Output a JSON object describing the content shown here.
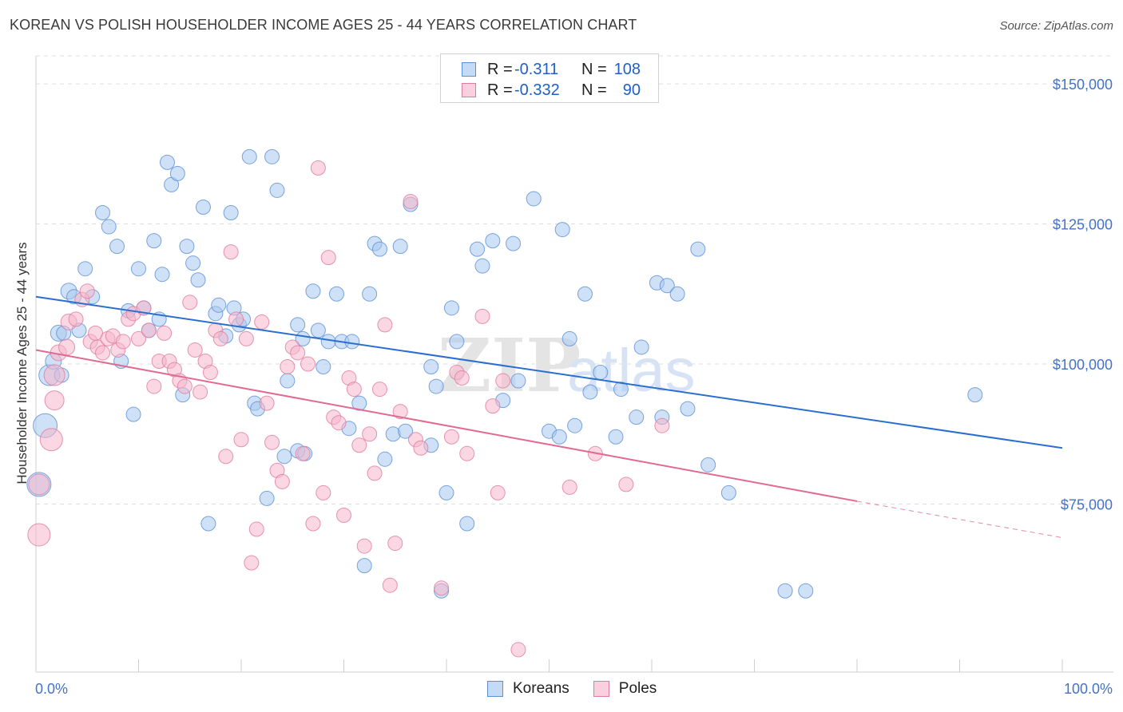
{
  "header": {
    "title": "KOREAN VS POLISH HOUSEHOLDER INCOME AGES 25 - 44 YEARS CORRELATION CHART",
    "source": "Source: ZipAtlas.com"
  },
  "legend": {
    "rows": [
      {
        "r_label": "R =",
        "r_value": "-0.311",
        "n_label": "N =",
        "n_value": "108",
        "color": "#a8c8f0"
      },
      {
        "r_label": "R =",
        "r_value": "-0.332",
        "n_label": "N =",
        "n_value": "90",
        "color": "#f5b6cb"
      }
    ]
  },
  "bottom_legend": [
    {
      "label": "Koreans",
      "color": "#a8c8f0"
    },
    {
      "label": "Poles",
      "color": "#f5b6cb"
    }
  ],
  "watermark": {
    "zip": "ZIP",
    "atlas": "atlas"
  },
  "chart_data": {
    "type": "scatter",
    "title": "KOREAN VS POLISH HOUSEHOLDER INCOME AGES 25 - 44 YEARS CORRELATION CHART",
    "xlabel": "",
    "ylabel": "Householder Income Ages 25 - 44 years",
    "xlim": [
      0,
      100
    ],
    "ylim": [
      45000,
      155000
    ],
    "x_tick_labels": [
      "0.0%",
      "100.0%"
    ],
    "y_ticks": [
      75000,
      100000,
      125000,
      150000
    ],
    "y_tick_labels": [
      "$75,000",
      "$100,000",
      "$125,000",
      "$150,000"
    ],
    "grid": true,
    "legend_position": "top-center",
    "series": [
      {
        "name": "Koreans",
        "color": "#a8c8f0",
        "stroke": "#5b8fd6",
        "trend": {
          "x": [
            0,
            100
          ],
          "y": [
            112000,
            85000
          ],
          "color": "#2a6fd0"
        },
        "points": [
          [
            0.3,
            78500,
            14
          ],
          [
            0.9,
            89000,
            14
          ],
          [
            1.3,
            98000,
            12
          ],
          [
            1.7,
            100500,
            9
          ],
          [
            2.2,
            105500,
            9
          ],
          [
            2.5,
            98000,
            8
          ],
          [
            2.7,
            105500,
            8
          ],
          [
            3.2,
            113000,
            9
          ],
          [
            3.7,
            112000,
            8
          ],
          [
            4.2,
            106000,
            8
          ],
          [
            4.8,
            117000,
            8
          ],
          [
            5.5,
            112000,
            8
          ],
          [
            6.5,
            127000,
            8
          ],
          [
            7.1,
            124500,
            8
          ],
          [
            7.9,
            121000,
            8
          ],
          [
            8.3,
            100500,
            8
          ],
          [
            9.0,
            109500,
            8
          ],
          [
            9.5,
            91000,
            8
          ],
          [
            10.0,
            117000,
            8
          ],
          [
            10.5,
            110000,
            8
          ],
          [
            11.0,
            106000,
            8
          ],
          [
            11.5,
            122000,
            8
          ],
          [
            12.0,
            108000,
            8
          ],
          [
            12.3,
            116000,
            8
          ],
          [
            12.8,
            136000,
            8
          ],
          [
            13.2,
            132000,
            8
          ],
          [
            13.8,
            134000,
            8
          ],
          [
            14.3,
            94500,
            8
          ],
          [
            14.7,
            121000,
            8
          ],
          [
            15.3,
            118000,
            8
          ],
          [
            15.8,
            115000,
            8
          ],
          [
            16.3,
            128000,
            8
          ],
          [
            16.8,
            71500,
            8
          ],
          [
            17.5,
            109000,
            8
          ],
          [
            17.8,
            110500,
            8
          ],
          [
            18.5,
            105000,
            8
          ],
          [
            19.0,
            127000,
            8
          ],
          [
            19.3,
            110000,
            8
          ],
          [
            19.8,
            107000,
            8
          ],
          [
            20.2,
            108000,
            8
          ],
          [
            20.8,
            137000,
            8
          ],
          [
            21.3,
            93000,
            8
          ],
          [
            21.6,
            92000,
            8
          ],
          [
            22.5,
            76000,
            8
          ],
          [
            23.0,
            137000,
            8
          ],
          [
            23.5,
            131000,
            8
          ],
          [
            24.2,
            83500,
            8
          ],
          [
            24.5,
            97000,
            8
          ],
          [
            25.5,
            107000,
            8
          ],
          [
            26.0,
            104500,
            8
          ],
          [
            25.5,
            84500,
            8
          ],
          [
            26.2,
            84000,
            8
          ],
          [
            27.0,
            113000,
            8
          ],
          [
            27.5,
            106000,
            8
          ],
          [
            28.0,
            99500,
            8
          ],
          [
            28.5,
            104000,
            8
          ],
          [
            29.3,
            112500,
            8
          ],
          [
            29.8,
            104000,
            8
          ],
          [
            30.5,
            88500,
            8
          ],
          [
            30.8,
            104000,
            8
          ],
          [
            31.5,
            93000,
            8
          ],
          [
            32.0,
            64000,
            8
          ],
          [
            32.5,
            112500,
            8
          ],
          [
            33.0,
            121500,
            8
          ],
          [
            33.5,
            120500,
            8
          ],
          [
            34.0,
            83000,
            8
          ],
          [
            34.8,
            87500,
            8
          ],
          [
            35.5,
            121000,
            8
          ],
          [
            36.0,
            88000,
            8
          ],
          [
            36.5,
            128500,
            8
          ],
          [
            38.5,
            99500,
            8
          ],
          [
            39.0,
            96000,
            8
          ],
          [
            38.5,
            85500,
            8
          ],
          [
            39.5,
            59500,
            8
          ],
          [
            40.0,
            77000,
            8
          ],
          [
            40.5,
            110000,
            8
          ],
          [
            41.0,
            104000,
            8
          ],
          [
            42.0,
            71500,
            8
          ],
          [
            43.0,
            120500,
            8
          ],
          [
            43.5,
            117500,
            8
          ],
          [
            44.5,
            122000,
            8
          ],
          [
            45.5,
            93500,
            8
          ],
          [
            46.5,
            121500,
            8
          ],
          [
            47.0,
            97000,
            8
          ],
          [
            48.5,
            129500,
            8
          ],
          [
            50.0,
            88000,
            8
          ],
          [
            51.0,
            87000,
            8
          ],
          [
            51.3,
            124000,
            8
          ],
          [
            52.0,
            104500,
            8
          ],
          [
            52.5,
            89000,
            8
          ],
          [
            53.5,
            112500,
            8
          ],
          [
            54.0,
            95000,
            8
          ],
          [
            55.0,
            98500,
            8
          ],
          [
            56.5,
            87000,
            8
          ],
          [
            57.0,
            95500,
            8
          ],
          [
            58.5,
            90500,
            8
          ],
          [
            59.0,
            103000,
            8
          ],
          [
            60.5,
            114500,
            8
          ],
          [
            61.5,
            114000,
            8
          ],
          [
            62.5,
            112500,
            8
          ],
          [
            63.5,
            92000,
            8
          ],
          [
            65.5,
            82000,
            8
          ],
          [
            67.5,
            77000,
            8
          ],
          [
            73.0,
            59500,
            8
          ],
          [
            75.0,
            59500,
            8
          ],
          [
            91.5,
            94500,
            8
          ],
          [
            61.0,
            90500,
            8
          ],
          [
            64.5,
            120500,
            8
          ]
        ]
      },
      {
        "name": "Poles",
        "color": "#f5b6cb",
        "stroke": "#e07aa0",
        "trend": {
          "x": [
            0,
            80
          ],
          "y": [
            102500,
            75500
          ],
          "color": "#e06a94"
        },
        "trend_dashed": {
          "x": [
            80,
            100
          ],
          "y": [
            75500,
            69000
          ]
        },
        "points": [
          [
            0.3,
            69500,
            13
          ],
          [
            0.3,
            78500,
            12
          ],
          [
            1.5,
            86500,
            13
          ],
          [
            1.8,
            98000,
            12
          ],
          [
            1.8,
            93500,
            11
          ],
          [
            2.2,
            102000,
            9
          ],
          [
            3.0,
            103000,
            9
          ],
          [
            3.2,
            107500,
            9
          ],
          [
            3.9,
            108000,
            8
          ],
          [
            4.5,
            111500,
            8
          ],
          [
            5.0,
            113000,
            8
          ],
          [
            5.3,
            104000,
            8
          ],
          [
            5.8,
            105500,
            8
          ],
          [
            6.0,
            103000,
            8
          ],
          [
            6.5,
            102000,
            8
          ],
          [
            7.0,
            104500,
            8
          ],
          [
            7.5,
            105000,
            8
          ],
          [
            8.0,
            102500,
            8
          ],
          [
            8.5,
            104000,
            8
          ],
          [
            9.0,
            108000,
            8
          ],
          [
            9.5,
            109000,
            8
          ],
          [
            10.0,
            104500,
            8
          ],
          [
            10.5,
            110000,
            8
          ],
          [
            11.0,
            106000,
            8
          ],
          [
            11.5,
            96000,
            8
          ],
          [
            12.0,
            100500,
            8
          ],
          [
            12.5,
            105500,
            8
          ],
          [
            13.0,
            100500,
            8
          ],
          [
            13.5,
            99000,
            8
          ],
          [
            14.0,
            97000,
            8
          ],
          [
            14.5,
            96000,
            8
          ],
          [
            15.0,
            111000,
            8
          ],
          [
            15.5,
            102500,
            8
          ],
          [
            16.0,
            95000,
            8
          ],
          [
            16.5,
            100500,
            8
          ],
          [
            17.0,
            98500,
            8
          ],
          [
            17.5,
            106000,
            8
          ],
          [
            18.0,
            104500,
            8
          ],
          [
            18.5,
            83500,
            8
          ],
          [
            19.0,
            120000,
            8
          ],
          [
            19.5,
            108000,
            8
          ],
          [
            20.0,
            86500,
            8
          ],
          [
            20.5,
            104500,
            8
          ],
          [
            21.0,
            64500,
            8
          ],
          [
            21.5,
            70500,
            8
          ],
          [
            22.0,
            107500,
            8
          ],
          [
            22.5,
            93000,
            8
          ],
          [
            23.0,
            86000,
            8
          ],
          [
            23.5,
            81000,
            8
          ],
          [
            24.0,
            79000,
            8
          ],
          [
            24.5,
            99500,
            8
          ],
          [
            25.0,
            103000,
            8
          ],
          [
            25.5,
            102000,
            8
          ],
          [
            26.0,
            84000,
            8
          ],
          [
            26.5,
            100000,
            8
          ],
          [
            27.0,
            71500,
            8
          ],
          [
            27.5,
            135000,
            8
          ],
          [
            28.0,
            77000,
            8
          ],
          [
            28.5,
            119000,
            8
          ],
          [
            29.0,
            90500,
            8
          ],
          [
            29.5,
            89500,
            8
          ],
          [
            30.0,
            73000,
            8
          ],
          [
            30.5,
            97500,
            8
          ],
          [
            31.0,
            95500,
            8
          ],
          [
            31.5,
            85500,
            8
          ],
          [
            32.0,
            67500,
            8
          ],
          [
            32.5,
            87500,
            8
          ],
          [
            33.0,
            80500,
            8
          ],
          [
            33.5,
            95500,
            8
          ],
          [
            34.0,
            107000,
            8
          ],
          [
            34.5,
            60500,
            8
          ],
          [
            35.0,
            68000,
            8
          ],
          [
            35.5,
            91500,
            8
          ],
          [
            36.5,
            129000,
            8
          ],
          [
            37.0,
            86500,
            8
          ],
          [
            37.5,
            85000,
            8
          ],
          [
            39.5,
            60000,
            8
          ],
          [
            40.5,
            87000,
            8
          ],
          [
            41.0,
            98500,
            8
          ],
          [
            41.5,
            97500,
            8
          ],
          [
            42.0,
            84000,
            8
          ],
          [
            43.5,
            108500,
            8
          ],
          [
            44.5,
            92500,
            8
          ],
          [
            45.0,
            77000,
            8
          ],
          [
            45.5,
            97000,
            8
          ],
          [
            47.0,
            49000,
            8
          ],
          [
            52.0,
            78000,
            8
          ],
          [
            54.5,
            84000,
            8
          ],
          [
            57.5,
            78500,
            8
          ],
          [
            61.0,
            89000,
            8
          ]
        ]
      }
    ]
  }
}
